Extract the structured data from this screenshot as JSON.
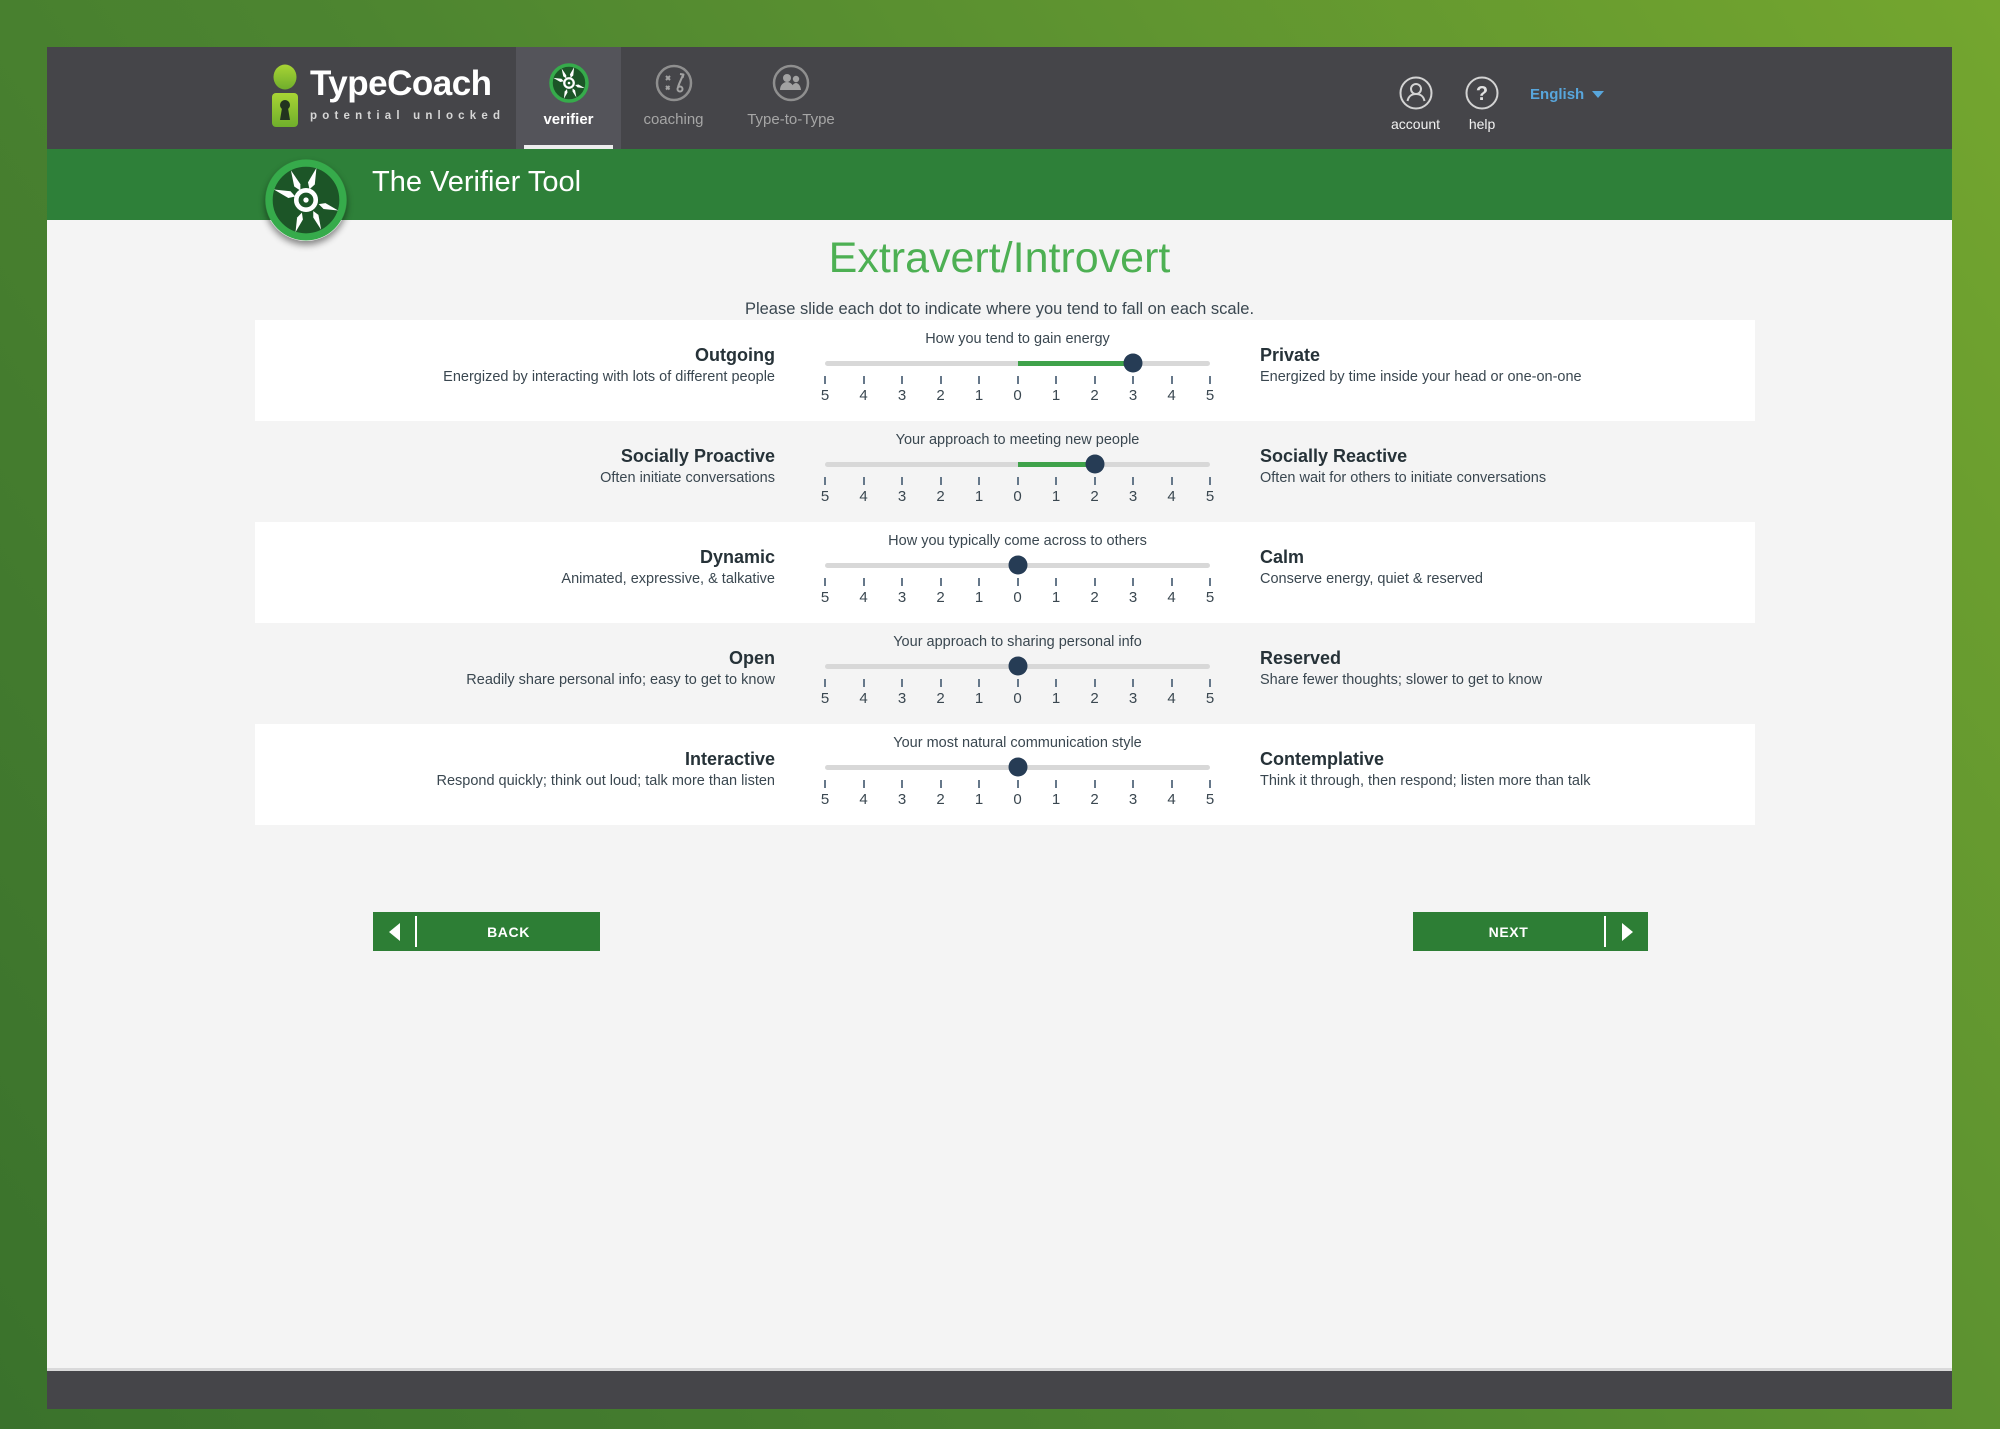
{
  "header": {
    "logo": {
      "name": "TypeCoach",
      "tagline": "potential unlocked"
    },
    "tabs": [
      {
        "label": "verifier",
        "active": true
      },
      {
        "label": "coaching",
        "active": false
      },
      {
        "label": "Type-to-Type",
        "active": false
      }
    ],
    "account_label": "account",
    "help_label": "help",
    "language": "English"
  },
  "banner": {
    "title": "The Verifier Tool"
  },
  "page": {
    "title": "Extravert/Introvert",
    "instruction": "Please slide each dot to indicate where you tend to fall on each scale."
  },
  "slider_ticks": [
    "5",
    "4",
    "3",
    "2",
    "1",
    "0",
    "1",
    "2",
    "3",
    "4",
    "5"
  ],
  "scales": [
    {
      "question": "How you tend to gain energy",
      "value": 3,
      "left": {
        "title": "Outgoing",
        "desc": "Energized by interacting with lots of different people"
      },
      "right": {
        "title": "Private",
        "desc": "Energized by time inside your head or one-on-one"
      }
    },
    {
      "question": "Your approach to meeting new people",
      "value": 2,
      "left": {
        "title": "Socially Proactive",
        "desc": "Often initiate conversations"
      },
      "right": {
        "title": "Socially Reactive",
        "desc": "Often wait for others to initiate conversations"
      }
    },
    {
      "question": "How you typically come across to others",
      "value": 0,
      "left": {
        "title": "Dynamic",
        "desc": "Animated, expressive, & talkative"
      },
      "right": {
        "title": "Calm",
        "desc": "Conserve energy, quiet & reserved"
      }
    },
    {
      "question": "Your approach to sharing personal info",
      "value": 0,
      "left": {
        "title": "Open",
        "desc": "Readily share personal info; easy to get to know"
      },
      "right": {
        "title": "Reserved",
        "desc": "Share fewer thoughts; slower to get to know"
      }
    },
    {
      "question": "Your most natural communication style",
      "value": 0,
      "left": {
        "title": "Interactive",
        "desc": "Respond quickly; think out loud; talk more than listen"
      },
      "right": {
        "title": "Contemplative",
        "desc": "Think it through, then respond; listen more than talk"
      }
    }
  ],
  "buttons": {
    "back": "BACK",
    "next": "NEXT"
  },
  "colors": {
    "banner_green": "#2e8039",
    "accent_green": "#4db053",
    "slider_fill": "#3fa24a",
    "handle_navy": "#263c55",
    "button_green": "#2d7e35",
    "language_blue": "#58a6dc",
    "header_dark": "#454549",
    "page_bg": "#f4f4f4"
  }
}
